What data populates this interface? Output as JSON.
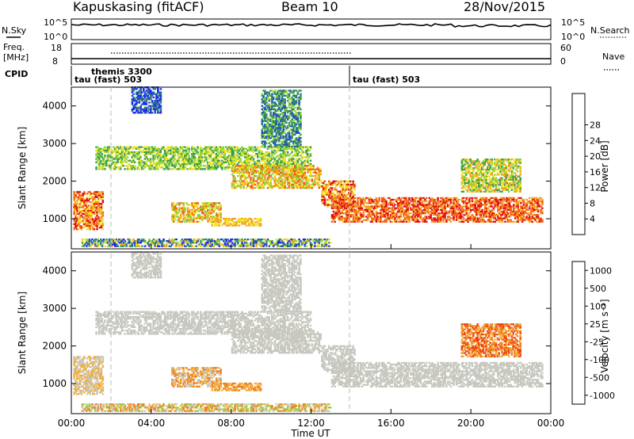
{
  "header": {
    "station": "Kapuskasing (fitACF)",
    "beam": "Beam 10",
    "date": "28/Nov/2015"
  },
  "top_panels": {
    "nsky_label": "N.Sky",
    "nsky_ticks": [
      "10^5",
      "10^0"
    ],
    "nsearch_label": "N.Search",
    "nsearch_ticks": [
      "10^5",
      "10^0"
    ],
    "freq_label": "Freq.",
    "freq_unit": "[MHz]",
    "freq_ticks": [
      "18",
      "8"
    ],
    "nave_label": "Nave",
    "nave_ticks": [
      "60",
      "0"
    ],
    "cpid_label": "CPID",
    "cpid_segments": [
      {
        "label": "tau (fast) 503",
        "start_hour": 0,
        "end_hour": 14
      },
      {
        "label": "tau (fast) 503",
        "start_hour": 14,
        "end_hour": 24
      }
    ],
    "cpid_extra": {
      "label": "themis 3300",
      "start_hour": 2
    }
  },
  "chart_data": [
    {
      "type": "heatmap",
      "title": "",
      "xlabel": "",
      "ylabel": "Slant Range [km]",
      "xlim": [
        0,
        24
      ],
      "ylim": [
        200,
        4500
      ],
      "yticks": [
        "1000",
        "2000",
        "3000",
        "4000"
      ],
      "colorbar": {
        "label": "Power [dB]",
        "ticks": [
          "4",
          "8",
          "12",
          "16",
          "20",
          "24",
          "28"
        ],
        "colors": [
          "#1f1fff",
          "#2050c0",
          "#2e7d7d",
          "#3aa04a",
          "#8fd23a",
          "#f0e020",
          "#f5a020",
          "#f06018",
          "#e01010"
        ]
      }
    },
    {
      "type": "heatmap",
      "title": "",
      "xlabel": "Time UT",
      "ylabel": "Slant Range [km]",
      "xlim": [
        0,
        24
      ],
      "ylim": [
        200,
        4500
      ],
      "xticks": [
        "00:00",
        "04:00",
        "08:00",
        "12:00",
        "16:00",
        "20:00",
        "00:00"
      ],
      "yticks": [
        "1000",
        "2000",
        "3000",
        "4000"
      ],
      "colorbar": {
        "label": "Velocity [m s⁻¹]",
        "ticks": [
          "1000",
          "500",
          "100",
          "25",
          "-25",
          "-100",
          "-500",
          "-1000"
        ],
        "colors": [
          "#2040c8",
          "#3a8a8a",
          "#5ab050",
          "#9ad040",
          "#c8c8c0",
          "#f0b040",
          "#f08020",
          "#f04010",
          "#e00000"
        ]
      }
    }
  ]
}
